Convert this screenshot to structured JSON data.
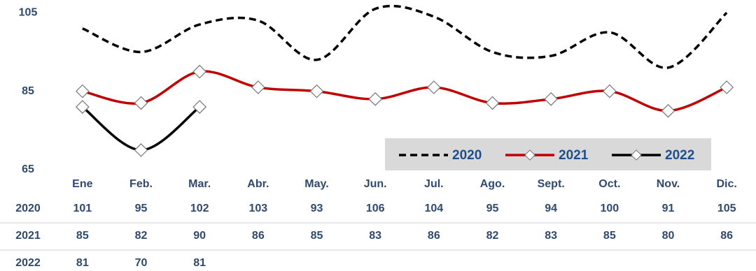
{
  "chart_data": {
    "type": "line",
    "categories": [
      "Ene",
      "Feb.",
      "Mar.",
      "Abr.",
      "May.",
      "Jun.",
      "Jul.",
      "Ago.",
      "Sept.",
      "Oct.",
      "Nov.",
      "Dic."
    ],
    "series": [
      {
        "name": "2020",
        "color": "#000000",
        "style": "dashed",
        "markers": false,
        "values": [
          101,
          95,
          102,
          103,
          93,
          106,
          104,
          95,
          94,
          100,
          91,
          105
        ]
      },
      {
        "name": "2021",
        "color": "#c00000",
        "style": "solid",
        "markers": true,
        "values": [
          85,
          82,
          90,
          86,
          85,
          83,
          86,
          82,
          83,
          85,
          80,
          86
        ]
      },
      {
        "name": "2022",
        "color": "#000000",
        "style": "solid",
        "markers": true,
        "values": [
          81,
          70,
          81,
          null,
          null,
          null,
          null,
          null,
          null,
          null,
          null,
          null
        ]
      }
    ],
    "ylim": [
      65,
      107
    ],
    "yticks": [
      65,
      85,
      105
    ],
    "smooth": true,
    "data_table": true
  }
}
